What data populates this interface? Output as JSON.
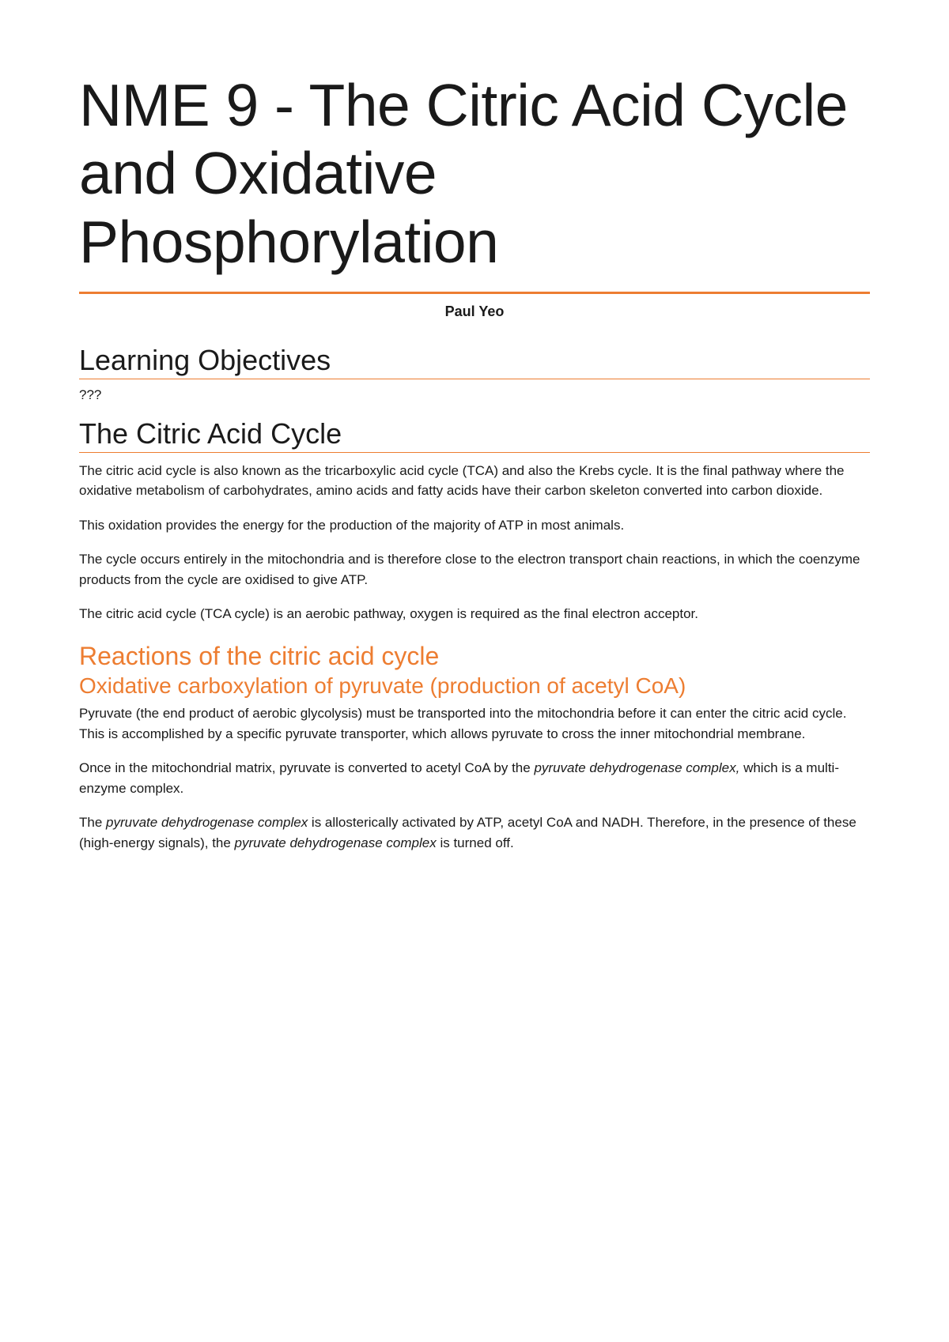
{
  "colors": {
    "accent": "#ed7d31",
    "text": "#1a1a1a",
    "background": "#ffffff"
  },
  "typography": {
    "title_fontsize": 75,
    "title_weight": 300,
    "h1_fontsize": 36,
    "h2_fontsize": 32,
    "h3_fontsize": 28,
    "body_fontsize": 17,
    "author_fontsize": 18
  },
  "title": "NME 9 - The Citric Acid Cycle and Oxidative Phosphorylation",
  "author": "Paul Yeo",
  "sections": {
    "learning_objectives": {
      "heading": "Learning Objectives",
      "content": "???"
    },
    "citric_acid_cycle": {
      "heading": "The Citric Acid Cycle",
      "p1": "The citric acid cycle is also known as the tricarboxylic acid cycle (TCA) and also the Krebs cycle. It is the final pathway where the oxidative metabolism of carbohydrates, amino acids and fatty acids have their carbon skeleton converted into carbon dioxide.",
      "p2": "This oxidation provides the energy for the production of the majority of ATP in most animals.",
      "p3": "The cycle occurs entirely in the mitochondria and is therefore close to the electron transport chain reactions, in which the coenzyme products from the cycle are oxidised to give ATP.",
      "p4": "The citric acid cycle (TCA cycle) is an aerobic pathway, oxygen is required as the final electron acceptor."
    },
    "reactions": {
      "heading": "Reactions of the citric acid cycle",
      "subheading": "Oxidative carboxylation of pyruvate (production of acetyl CoA)",
      "p1": "Pyruvate (the end product of aerobic glycolysis) must be transported into the mitochondria before it can enter the citric acid cycle. This is accomplished by a specific pyruvate transporter, which allows pyruvate to cross the inner mitochondrial membrane.",
      "p2_pre": "Once in the mitochondrial matrix, pyruvate is converted to acetyl CoA by the ",
      "p2_em": "pyruvate dehydrogenase complex,",
      "p2_post": " which is a multi-enzyme complex.",
      "p3_pre": "The ",
      "p3_em1": "pyruvate dehydrogenase complex",
      "p3_mid": " is allosterically activated by ATP, acetyl CoA and NADH. Therefore, in the presence of these (high-energy signals), the ",
      "p3_em2": "pyruvate dehydrogenase complex",
      "p3_post": " is turned off."
    }
  }
}
